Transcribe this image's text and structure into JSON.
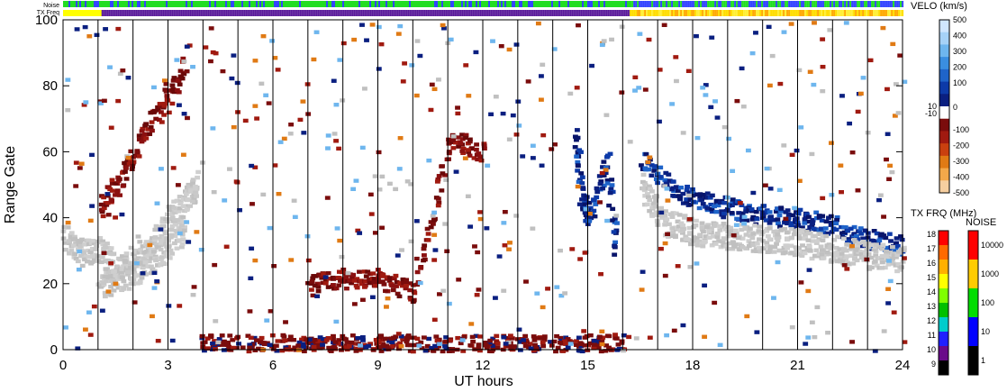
{
  "chart_data": {
    "type": "heatmap",
    "title": "",
    "xlabel": "UT hours",
    "ylabel": "Range Gate",
    "xlim": [
      0,
      24
    ],
    "ylim": [
      0,
      100
    ],
    "x_ticks": [
      0,
      3,
      6,
      9,
      12,
      15,
      18,
      21,
      24
    ],
    "y_ticks": [
      0,
      20,
      40,
      60,
      80,
      100
    ],
    "hour_grid_lines": [
      1,
      2,
      3,
      4,
      5,
      6,
      7,
      8,
      9,
      10,
      11,
      12,
      13,
      14,
      15,
      16,
      17,
      18,
      19,
      20,
      21,
      22,
      23
    ],
    "status_bars": [
      {
        "label": "Noise",
        "segments": [
          {
            "from": 0,
            "to": 16.2,
            "pattern": "green-blue"
          },
          {
            "from": 16.2,
            "to": 24,
            "pattern": "green-blue-dense"
          }
        ]
      },
      {
        "label": "TX Freq",
        "segments": [
          {
            "from": 0,
            "to": 1.1,
            "pattern": "yellow"
          },
          {
            "from": 1.1,
            "to": 16.2,
            "pattern": "purple"
          },
          {
            "from": 16.2,
            "to": 24,
            "pattern": "yellow-orange"
          }
        ]
      }
    ],
    "velocity_scale": {
      "title": "VELO (km/s)",
      "ticks": [
        "500",
        "400",
        "300",
        "200",
        "100",
        "0",
        "10",
        "-10",
        "-100",
        "-200",
        "-300",
        "-400",
        "-500"
      ],
      "colors": [
        "#cfe6ff",
        "#a6d2f7",
        "#6eb6ee",
        "#3a8ee0",
        "#1f64c9",
        "#0d3aa8",
        "#0a1f80",
        "#ffffff",
        "#7a0c0c",
        "#a01a10",
        "#c9400f",
        "#e07a14",
        "#f3a84a",
        "#f6cfa0"
      ]
    },
    "frequency_scale": {
      "title": "TX FRQ (MHz)",
      "ticks": [
        "18",
        "17",
        "16",
        "15",
        "14",
        "13",
        "12",
        "11",
        "10",
        "9"
      ],
      "colors": [
        "#ff0000",
        "#ff6a00",
        "#ffb000",
        "#ffff00",
        "#7fff00",
        "#00c000",
        "#00cccc",
        "#2020ff",
        "#6a0a8a",
        "#000000"
      ]
    },
    "noise_scale": {
      "title": "NOISE",
      "ticks": [
        "10000",
        "1000",
        "100",
        "10",
        "1"
      ],
      "colors": [
        "#ff0000",
        "#ffcc00",
        "#00dd00",
        "#0000ff",
        "#000000"
      ]
    },
    "echo_regions": [
      {
        "name": "ground-scatter-upper",
        "color": "grey",
        "points": [
          [
            0,
            34
          ],
          [
            0.5,
            30
          ],
          [
            1,
            31
          ],
          [
            1.5,
            25
          ],
          [
            2,
            28
          ],
          [
            2.5,
            32
          ],
          [
            3,
            40
          ],
          [
            3.5,
            46
          ],
          [
            3.8,
            52
          ]
        ]
      },
      {
        "name": "ground-scatter-lower",
        "color": "grey",
        "points": [
          [
            1,
            20
          ],
          [
            1.5,
            22
          ],
          [
            2,
            24
          ],
          [
            2.5,
            28
          ],
          [
            3,
            32
          ],
          [
            3.5,
            38
          ]
        ]
      },
      {
        "name": "ionospheric-morning",
        "color": "red",
        "points": [
          [
            1,
            44
          ],
          [
            1.5,
            50
          ],
          [
            2,
            60
          ],
          [
            2.5,
            70
          ],
          [
            3,
            78
          ],
          [
            3.5,
            88
          ]
        ]
      },
      {
        "name": "ionospheric-midday",
        "color": "red",
        "points": [
          [
            7,
            20
          ],
          [
            8,
            22
          ],
          [
            9,
            22
          ],
          [
            10,
            18
          ],
          [
            11,
            65
          ],
          [
            12,
            60
          ]
        ]
      },
      {
        "name": "blue-streak",
        "color": "blue",
        "points": [
          [
            14.6,
            65
          ],
          [
            14.8,
            45
          ],
          [
            15,
            40
          ],
          [
            15.5,
            58
          ],
          [
            15.8,
            25
          ]
        ]
      },
      {
        "name": "afternoon-band",
        "color": "blue",
        "points": [
          [
            16.5,
            58
          ],
          [
            17.5,
            48
          ],
          [
            18.5,
            45
          ],
          [
            19.5,
            42
          ],
          [
            21,
            40
          ],
          [
            22,
            38
          ],
          [
            23,
            34
          ],
          [
            24,
            32
          ]
        ]
      },
      {
        "name": "afternoon-ground",
        "color": "grey",
        "points": [
          [
            16.5,
            50
          ],
          [
            17,
            40
          ],
          [
            18,
            36
          ],
          [
            19,
            35
          ],
          [
            20,
            34
          ],
          [
            21,
            33
          ],
          [
            22,
            31
          ],
          [
            23,
            29
          ],
          [
            24,
            28
          ]
        ]
      }
    ]
  }
}
